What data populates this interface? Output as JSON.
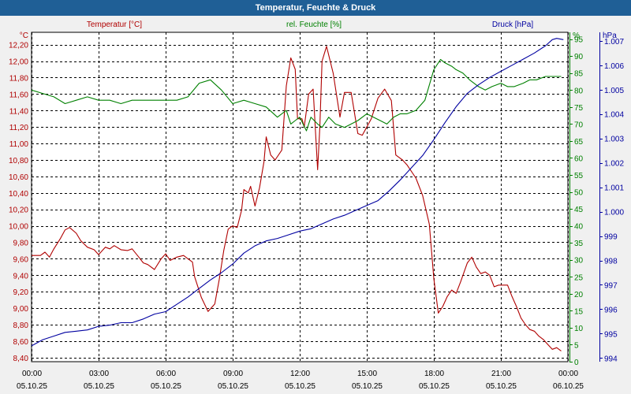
{
  "window": {
    "title": "Temperatur, Feuchte & Druck"
  },
  "colors": {
    "temperature": "#b00000",
    "humidity": "#008000",
    "pressure": "#0000a0",
    "grid": "#000000",
    "plot_bg": "#ffffff",
    "title_bg": "#1f5f96"
  },
  "chart_data": {
    "type": "line",
    "title": "Temperatur, Feuchte & Druck",
    "grid": true,
    "x": {
      "range": [
        0,
        24
      ],
      "tick_values": [
        0,
        3,
        6,
        9,
        12,
        15,
        18,
        21,
        24
      ],
      "time_labels": [
        "00:00",
        "03:00",
        "06:00",
        "09:00",
        "12:00",
        "15:00",
        "18:00",
        "21:00",
        "00:00"
      ],
      "date_labels": [
        "05.10.25",
        "05.10.25",
        "05.10.25",
        "05.10.25",
        "05.10.25",
        "05.10.25",
        "05.10.25",
        "05.10.25",
        "06.10.25"
      ]
    },
    "axes": {
      "temperature": {
        "label": "Temperatur [°C]",
        "unit": "°C",
        "range": [
          8.35,
          12.35
        ],
        "ticks": [
          8.4,
          8.6,
          8.8,
          9.0,
          9.2,
          9.4,
          9.6,
          9.8,
          10.0,
          10.2,
          10.4,
          10.6,
          10.8,
          11.0,
          11.2,
          11.4,
          11.6,
          11.8,
          12.0,
          12.2
        ],
        "tick_labels": [
          "8,40",
          "8,60",
          "8,80",
          "9,00",
          "9,20",
          "9,40",
          "9,60",
          "9,80",
          "10,00",
          "10,20",
          "10,40",
          "10,60",
          "10,80",
          "11,00",
          "11,20",
          "11,40",
          "11,60",
          "11,80",
          "12,00",
          "12,20"
        ]
      },
      "humidity": {
        "label": "rel. Feuchte [%]",
        "unit": "%",
        "range": [
          0,
          97
        ],
        "ticks": [
          0,
          5,
          10,
          15,
          20,
          25,
          30,
          35,
          40,
          45,
          50,
          55,
          60,
          65,
          70,
          75,
          80,
          85,
          90,
          95
        ],
        "tick_labels": [
          "0",
          "5",
          "10",
          "15",
          "20",
          "25",
          "30",
          "35",
          "40",
          "45",
          "50",
          "55",
          "60",
          "65",
          "70",
          "75",
          "80",
          "85",
          "90",
          "95"
        ]
      },
      "pressure": {
        "label": "Druck [hPa]",
        "unit": "hPa",
        "range": [
          993.85,
          1007.35
        ],
        "ticks": [
          994,
          995,
          996,
          997,
          998,
          999,
          1000,
          1001,
          1002,
          1003,
          1004,
          1005,
          1006,
          1007
        ],
        "tick_labels": [
          "994",
          "995",
          "996",
          "997",
          "998",
          "999",
          "1.000",
          "1.001",
          "1.002",
          "1.003",
          "1.004",
          "1.005",
          "1.006",
          "1.007"
        ]
      }
    },
    "series": [
      {
        "name": "Temperatur [°C]",
        "axis": "temperature",
        "x": [
          0,
          0.4,
          0.6,
          0.8,
          1.0,
          1.3,
          1.5,
          1.7,
          2.0,
          2.2,
          2.5,
          2.8,
          3.0,
          3.3,
          3.5,
          3.7,
          4.0,
          4.3,
          4.5,
          4.8,
          5.0,
          5.2,
          5.5,
          5.8,
          6.0,
          6.2,
          6.5,
          6.8,
          7.0,
          7.2,
          7.3,
          7.6,
          7.9,
          8.2,
          8.4,
          8.6,
          8.8,
          9.0,
          9.2,
          9.4,
          9.5,
          9.7,
          9.8,
          10.0,
          10.2,
          10.4,
          10.5,
          10.7,
          10.9,
          11.2,
          11.4,
          11.6,
          11.8,
          11.9,
          12.0,
          12.1,
          12.2,
          12.4,
          12.6,
          12.8,
          12.9,
          13.0,
          13.2,
          13.5,
          13.8,
          14.0,
          14.3,
          14.6,
          14.8,
          15.0,
          15.2,
          15.5,
          15.8,
          16.1,
          16.3,
          16.6,
          16.8,
          17.2,
          17.5,
          17.8,
          18.0,
          18.2,
          18.4,
          18.6,
          18.8,
          19.0,
          19.2,
          19.5,
          19.7,
          19.9,
          20.1,
          20.3,
          20.5,
          20.7,
          20.9,
          21.1,
          21.3,
          21.5,
          21.7,
          21.9,
          22.1,
          22.3,
          22.5,
          22.7,
          22.9,
          23.1,
          23.3,
          23.5,
          23.7
        ],
        "y": [
          9.64,
          9.64,
          9.68,
          9.62,
          9.72,
          9.85,
          9.95,
          9.98,
          9.91,
          9.82,
          9.74,
          9.71,
          9.65,
          9.74,
          9.72,
          9.76,
          9.71,
          9.7,
          9.72,
          9.62,
          9.55,
          9.53,
          9.47,
          9.6,
          9.66,
          9.58,
          9.62,
          9.64,
          9.6,
          9.56,
          9.38,
          9.13,
          8.96,
          9.05,
          9.35,
          9.7,
          9.96,
          10.0,
          9.98,
          10.19,
          10.44,
          10.4,
          10.48,
          10.24,
          10.46,
          10.78,
          11.08,
          10.86,
          10.8,
          10.92,
          11.7,
          12.04,
          11.9,
          11.3,
          11.3,
          11.3,
          11.2,
          11.6,
          11.66,
          10.68,
          11.2,
          12.0,
          12.18,
          11.85,
          11.32,
          11.62,
          11.62,
          11.12,
          11.1,
          11.2,
          11.3,
          11.55,
          11.66,
          11.52,
          10.86,
          10.8,
          10.74,
          10.58,
          10.37,
          10.02,
          9.36,
          8.94,
          9.02,
          9.14,
          9.22,
          9.18,
          9.32,
          9.55,
          9.62,
          9.5,
          9.42,
          9.44,
          9.4,
          9.26,
          9.28,
          9.28,
          9.28,
          9.14,
          9.02,
          8.88,
          8.8,
          8.74,
          8.72,
          8.66,
          8.62,
          8.56,
          8.5,
          8.52,
          8.48
        ]
      },
      {
        "name": "rel. Feuchte [%]",
        "axis": "humidity",
        "x": [
          0,
          0.5,
          1.0,
          1.5,
          2.0,
          2.5,
          3.0,
          3.5,
          4.0,
          4.5,
          5.0,
          5.5,
          6.0,
          6.5,
          7.0,
          7.5,
          8.0,
          8.5,
          9.0,
          9.5,
          10.0,
          10.5,
          11.0,
          11.4,
          11.6,
          11.8,
          12.0,
          12.3,
          12.5,
          12.8,
          13.0,
          13.3,
          13.6,
          14.0,
          14.3,
          14.6,
          15.0,
          15.3,
          15.6,
          15.9,
          16.2,
          16.5,
          16.8,
          17.2,
          17.6,
          18.0,
          18.3,
          18.5,
          18.8,
          19.0,
          19.3,
          19.6,
          20.0,
          20.3,
          20.6,
          21.0,
          21.3,
          21.6,
          22.0,
          22.3,
          22.6,
          23.0,
          23.3,
          23.7
        ],
        "y": [
          80,
          79,
          78,
          76,
          77,
          78,
          77,
          77,
          76,
          77,
          77,
          77,
          77,
          77,
          78,
          82,
          83,
          80,
          76,
          77,
          76,
          75,
          72,
          74,
          70,
          71,
          72,
          68,
          72,
          70,
          69,
          72,
          70,
          69,
          70,
          71,
          73,
          72,
          71,
          70,
          72,
          73,
          73,
          74,
          77,
          86,
          89,
          88,
          87,
          86,
          85,
          83,
          81,
          80,
          81,
          82,
          81,
          81,
          82,
          83,
          83,
          84,
          84,
          84
        ]
      },
      {
        "name": "Druck [hPa]",
        "axis": "pressure",
        "x": [
          0,
          0.5,
          1.0,
          1.5,
          2.0,
          2.5,
          3.0,
          3.5,
          4.0,
          4.5,
          5.0,
          5.5,
          6.0,
          6.5,
          7.0,
          7.5,
          8.0,
          8.5,
          9.0,
          9.5,
          10.0,
          10.5,
          11.0,
          11.5,
          12.0,
          12.5,
          13.0,
          13.5,
          14.0,
          14.5,
          15.0,
          15.5,
          16.0,
          16.5,
          17.0,
          17.5,
          18.0,
          18.5,
          19.0,
          19.5,
          20.0,
          20.5,
          21.0,
          21.5,
          22.0,
          22.5,
          23.0,
          23.3,
          23.5,
          23.8
        ],
        "y": [
          994.5,
          994.75,
          994.9,
          995.05,
          995.1,
          995.15,
          995.3,
          995.35,
          995.45,
          995.45,
          995.6,
          995.8,
          995.9,
          996.2,
          996.5,
          996.85,
          997.2,
          997.5,
          997.85,
          998.3,
          998.6,
          998.8,
          998.9,
          999.05,
          999.2,
          999.3,
          999.5,
          999.7,
          999.85,
          1000.05,
          1000.25,
          1000.45,
          1000.85,
          1001.3,
          1001.8,
          1002.3,
          1002.95,
          1003.65,
          1004.3,
          1004.85,
          1005.2,
          1005.5,
          1005.75,
          1006.0,
          1006.25,
          1006.5,
          1006.8,
          1007.05,
          1007.1,
          1007.05
        ]
      }
    ]
  }
}
